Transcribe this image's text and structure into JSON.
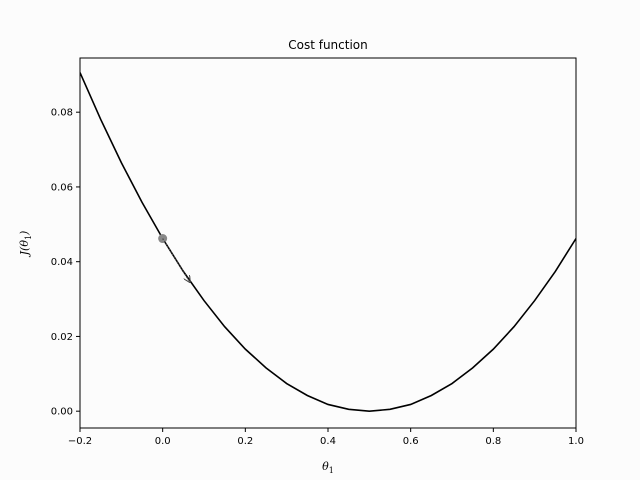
{
  "chart_data": {
    "type": "line",
    "title": "Cost function",
    "xlabel": "θ",
    "xlabel_sub": "1",
    "ylabel_prefix": "J(θ",
    "ylabel_sub": "1",
    "ylabel_suffix": ")",
    "xlim": [
      -0.2,
      1.0
    ],
    "ylim": [
      -0.0045,
      0.0945
    ],
    "xticks": [
      -0.2,
      0.0,
      0.2,
      0.4,
      0.6,
      0.8,
      1.0
    ],
    "xtick_labels": [
      "−0.2",
      "0.0",
      "0.2",
      "0.4",
      "0.6",
      "0.8",
      "1.0"
    ],
    "yticks": [
      0.0,
      0.02,
      0.04,
      0.06,
      0.08
    ],
    "ytick_labels": [
      "0.00",
      "0.02",
      "0.04",
      "0.06",
      "0.08"
    ],
    "grid": false,
    "series": [
      {
        "x": [
          -0.2,
          -0.15,
          -0.1,
          -0.05,
          0.0,
          0.05,
          0.1,
          0.15,
          0.2,
          0.25,
          0.3,
          0.35,
          0.4,
          0.45,
          0.5,
          0.55,
          0.6,
          0.65,
          0.7,
          0.75,
          0.8,
          0.85,
          0.9,
          0.95,
          1.0
        ],
        "y": [
          0.0906,
          0.0781,
          0.0665,
          0.0559,
          0.0462,
          0.0374,
          0.0296,
          0.0226,
          0.0166,
          0.0116,
          0.0074,
          0.0042,
          0.0018,
          0.0005,
          0.0,
          0.0005,
          0.0018,
          0.0042,
          0.0074,
          0.0116,
          0.0166,
          0.0226,
          0.0296,
          0.0374,
          0.0462
        ],
        "color": "#000000"
      }
    ],
    "marker": {
      "x": 0.0,
      "y": 0.0462,
      "color": "#888888"
    },
    "arrow": {
      "x1": 0.0,
      "y1": 0.0462,
      "x2": 0.066,
      "y2": 0.0345,
      "color": "#444444"
    }
  }
}
